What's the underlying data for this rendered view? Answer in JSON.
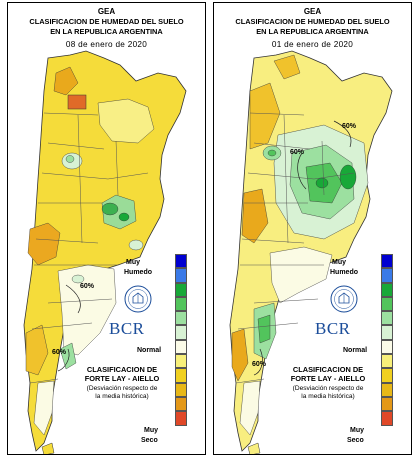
{
  "legend_colors": [
    "#0000d0",
    "#3a7ae8",
    "#18a838",
    "#52c45c",
    "#9ce0a0",
    "#d8f2d4",
    "#fbfbe8",
    "#f8f07a",
    "#f0d020",
    "#e8b818",
    "#e49818",
    "#e04828"
  ],
  "panels": [
    {
      "gea": "GEA",
      "title_line1": "CLASIFICACION DE HUMEDAD DEL SUELO",
      "title_line2": "EN LA REPUBLICA ARGENTINA",
      "date": "08 de enero de 2020",
      "muy_humedo": [
        "Muy",
        "Humedo"
      ],
      "normal": "Normal",
      "muy_seco": [
        "Muy",
        "Seco"
      ],
      "bcr": "BCR",
      "classification": [
        "CLASIFICACION DE",
        "FORTE LAY - AIELLO"
      ],
      "deviation": [
        "(Desviación respecto de",
        "la media histórica)"
      ],
      "contour_label": "60%"
    },
    {
      "gea": "GEA",
      "title_line1": "CLASIFICACION DE HUMEDAD DEL SUELO",
      "title_line2": "EN LA REPUBLICA ARGENTINA",
      "date": "01 de enero de 2020",
      "muy_humedo": [
        "Muy",
        "Humedo"
      ],
      "normal": "Normal",
      "muy_seco": [
        "Muy",
        "Seco"
      ],
      "bcr": "BCR",
      "classification": [
        "CLASIFICACION DE",
        "FORTE LAY - AIELLO"
      ],
      "deviation": [
        "(Desviación respecto de",
        "la media histórica)"
      ],
      "contour_label": "60%"
    }
  ]
}
